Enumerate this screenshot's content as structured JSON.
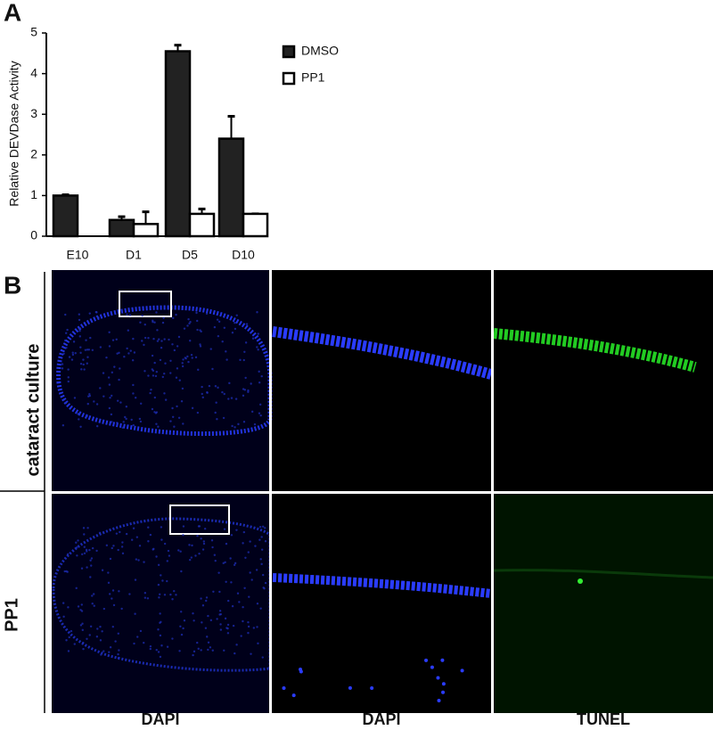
{
  "panel_labels": [
    "A",
    "B"
  ],
  "chart_data": {
    "type": "bar",
    "ylabel": "Relative DEVDase Activity",
    "categories": [
      "E10",
      "D1",
      "D5",
      "D10"
    ],
    "series": [
      {
        "name": "DMSO",
        "color": "#222222",
        "values": [
          1.0,
          0.4,
          4.55,
          2.4
        ],
        "errors": [
          0.02,
          0.08,
          0.15,
          0.55
        ]
      },
      {
        "name": "PP1",
        "color": "#ffffff",
        "values": [
          null,
          0.3,
          0.55,
          0.55
        ],
        "errors": [
          null,
          0.3,
          0.12,
          0.0
        ]
      }
    ],
    "ylim": [
      0,
      5
    ],
    "yticks": [
      0,
      1,
      2,
      3,
      4,
      5
    ]
  },
  "panel_b": {
    "row_labels": [
      "cataract culture",
      "PP1"
    ],
    "column_labels": [
      "DAPI",
      "DAPI",
      "TUNEL"
    ]
  }
}
